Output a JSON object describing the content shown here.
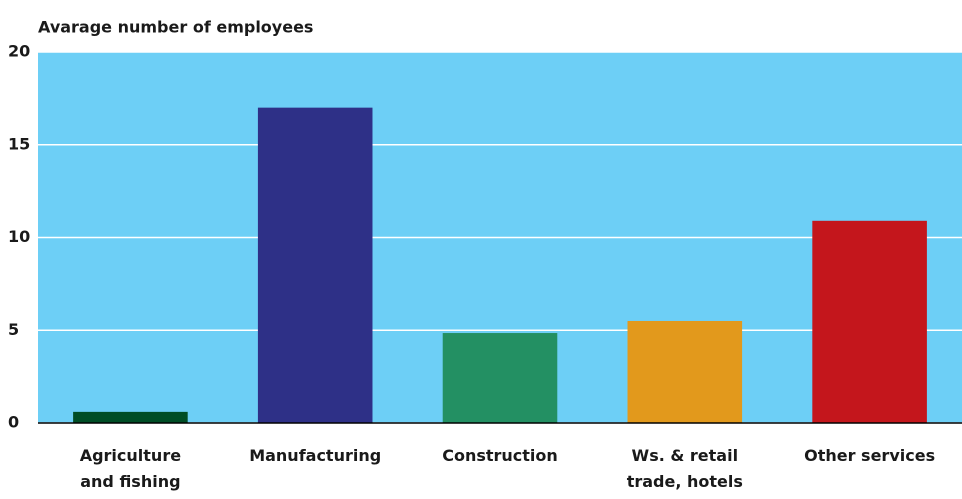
{
  "chart_data": {
    "type": "bar",
    "title": "Avarage number of employees",
    "categories": [
      "Agriculture and fishing",
      "Manufacturing",
      "Construction",
      "Ws. & retail trade, hotels",
      "Other services"
    ],
    "values": [
      0.6,
      17,
      4.85,
      5.5,
      10.9
    ],
    "colors": [
      "#004d25",
      "#2e3087",
      "#239063",
      "#e2991c",
      "#c4161c"
    ],
    "background": "#6dcff6",
    "ylim": [
      0,
      20
    ],
    "yticks": [
      0,
      5,
      10,
      15,
      20
    ],
    "grid": true
  }
}
